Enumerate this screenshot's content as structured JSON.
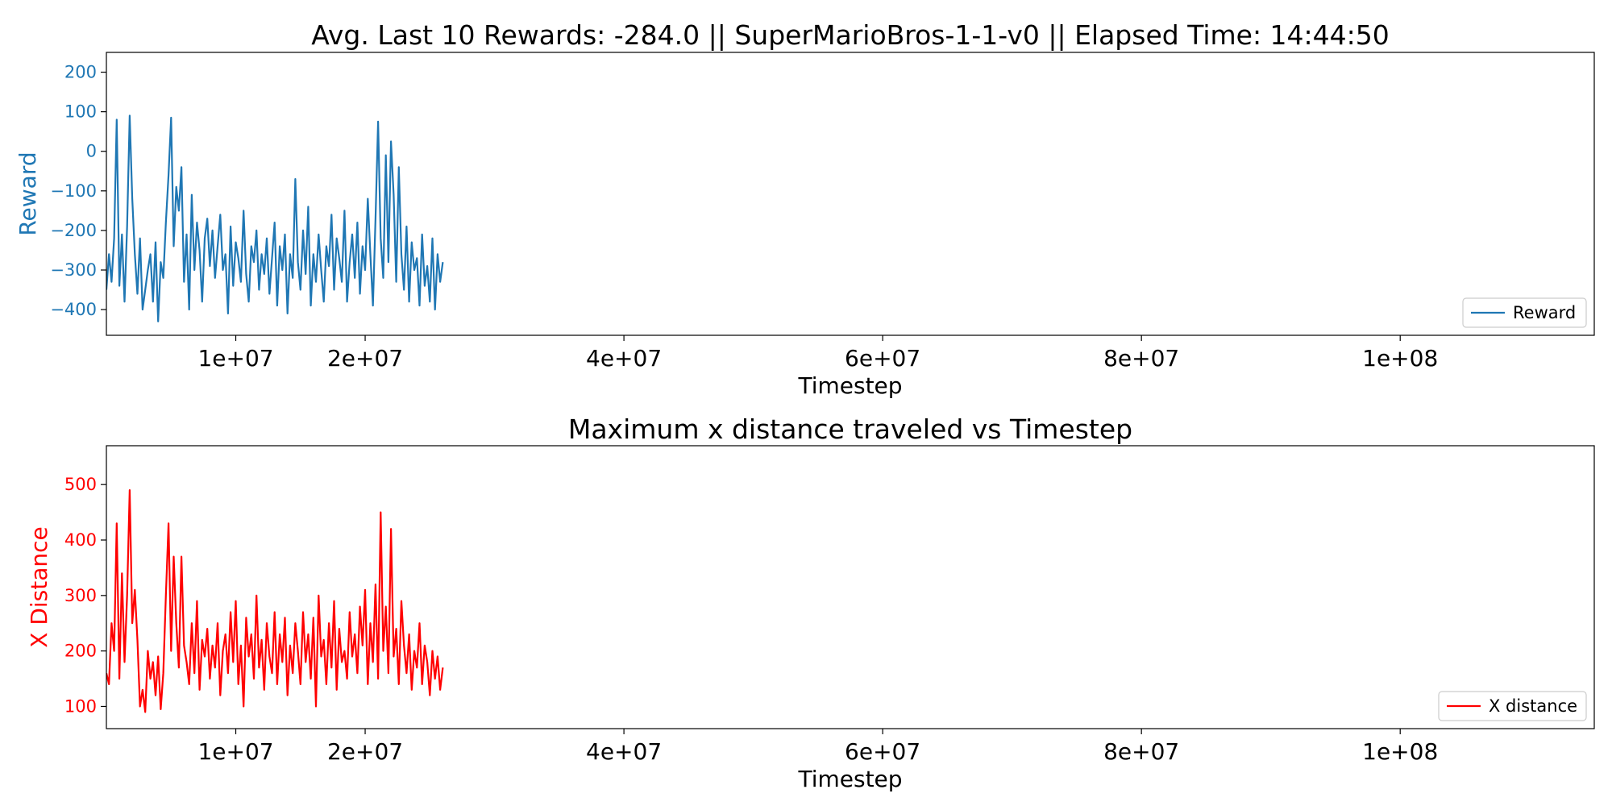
{
  "colors": {
    "reward": "#1f77b4",
    "xdist": "#ff0000",
    "axis": "#000000",
    "legend_border": "#cccccc"
  },
  "chart_data": [
    {
      "type": "line",
      "title": "Avg. Last 10 Rewards: -284.0 || SuperMarioBros-1-1-v0 || Elapsed Time: 14:44:50",
      "xlabel": "Timestep",
      "ylabel": "Reward",
      "xlim": [
        0,
        115000000
      ],
      "ylim": [
        -465,
        250
      ],
      "xticks": [
        10000000,
        20000000,
        40000000,
        60000000,
        80000000,
        100000000
      ],
      "xtick_labels": [
        "1e+07",
        "2e+07",
        "4e+07",
        "6e+07",
        "8e+07",
        "1e+08"
      ],
      "yticks": [
        -400,
        -300,
        -200,
        -100,
        0,
        100,
        200
      ],
      "ytick_labels": [
        "−400",
        "−300",
        "−200",
        "−100",
        "0",
        "100",
        "200"
      ],
      "legend": "lower-right",
      "series": [
        {
          "name": "Reward",
          "color": "#1f77b4",
          "x": [
            0,
            200000,
            400000,
            600000,
            800000,
            1000000,
            1200000,
            1400000,
            1600000,
            1800000,
            2000000,
            2200000,
            2400000,
            2600000,
            2800000,
            3000000,
            3200000,
            3400000,
            3600000,
            3800000,
            4000000,
            4200000,
            4400000,
            4600000,
            4800000,
            5000000,
            5200000,
            5400000,
            5600000,
            5800000,
            6000000,
            6200000,
            6400000,
            6600000,
            6800000,
            7000000,
            7200000,
            7400000,
            7600000,
            7800000,
            8000000,
            8200000,
            8400000,
            8600000,
            8800000,
            9000000,
            9200000,
            9400000,
            9600000,
            9800000,
            10000000,
            10200000,
            10400000,
            10600000,
            10800000,
            11000000,
            11200000,
            11400000,
            11600000,
            11800000,
            12000000,
            12200000,
            12400000,
            12600000,
            12800000,
            13000000,
            13200000,
            13400000,
            13600000,
            13800000,
            14000000,
            14200000,
            14400000,
            14600000,
            14800000,
            15000000,
            15200000,
            15400000,
            15600000,
            15800000,
            16000000,
            16200000,
            16400000,
            16600000,
            16800000,
            17000000,
            17200000,
            17400000,
            17600000,
            17800000,
            18000000,
            18200000,
            18400000,
            18600000,
            18800000,
            19000000,
            19200000,
            19400000,
            19600000,
            19800000,
            20000000,
            20200000,
            20400000,
            20600000,
            20800000,
            21000000,
            21200000,
            21400000,
            21600000,
            21800000,
            22000000,
            22200000,
            22400000,
            22600000,
            22800000,
            23000000,
            23200000,
            23400000,
            23600000,
            23800000,
            24000000,
            24200000,
            24400000,
            24600000,
            24800000,
            25000000,
            25200000,
            25400000,
            25600000,
            25800000,
            26000000
          ],
          "y": [
            -350,
            -260,
            -330,
            -220,
            80,
            -340,
            -210,
            -380,
            -190,
            90,
            -120,
            -260,
            -360,
            -220,
            -400,
            -350,
            -300,
            -260,
            -380,
            -230,
            -430,
            -280,
            -320,
            -180,
            -60,
            85,
            -240,
            -90,
            -150,
            -40,
            -330,
            -210,
            -400,
            -110,
            -300,
            -180,
            -250,
            -380,
            -220,
            -170,
            -290,
            -200,
            -320,
            -240,
            -160,
            -300,
            -260,
            -410,
            -190,
            -340,
            -230,
            -270,
            -330,
            -150,
            -310,
            -380,
            -240,
            -280,
            -200,
            -350,
            -260,
            -310,
            -220,
            -360,
            -270,
            -180,
            -390,
            -240,
            -300,
            -210,
            -410,
            -260,
            -320,
            -70,
            -280,
            -350,
            -200,
            -310,
            -140,
            -390,
            -260,
            -330,
            -210,
            -300,
            -380,
            -240,
            -290,
            -160,
            -350,
            -220,
            -270,
            -330,
            -150,
            -380,
            -280,
            -210,
            -320,
            -180,
            -360,
            -240,
            -300,
            -120,
            -260,
            -390,
            -170,
            75,
            -220,
            -320,
            -10,
            -280,
            25,
            -110,
            -330,
            -40,
            -260,
            -350,
            -190,
            -380,
            -230,
            -300,
            -270,
            -390,
            -210,
            -340,
            -290,
            -380,
            -220,
            -400,
            -260,
            -330,
            -280
          ]
        }
      ]
    },
    {
      "type": "line",
      "title": "Maximum x distance traveled vs Timestep",
      "xlabel": "Timestep",
      "ylabel": "X Distance",
      "xlim": [
        0,
        115000000
      ],
      "ylim": [
        60,
        570
      ],
      "xticks": [
        10000000,
        20000000,
        40000000,
        60000000,
        80000000,
        100000000
      ],
      "xtick_labels": [
        "1e+07",
        "2e+07",
        "4e+07",
        "6e+07",
        "8e+07",
        "1e+08"
      ],
      "yticks": [
        100,
        200,
        300,
        400,
        500
      ],
      "ytick_labels": [
        "100",
        "200",
        "300",
        "400",
        "500"
      ],
      "legend": "lower-right",
      "series": [
        {
          "name": "X distance",
          "color": "#ff0000",
          "x": [
            0,
            200000,
            400000,
            600000,
            800000,
            1000000,
            1200000,
            1400000,
            1600000,
            1800000,
            2000000,
            2200000,
            2400000,
            2600000,
            2800000,
            3000000,
            3200000,
            3400000,
            3600000,
            3800000,
            4000000,
            4200000,
            4400000,
            4600000,
            4800000,
            5000000,
            5200000,
            5400000,
            5600000,
            5800000,
            6000000,
            6200000,
            6400000,
            6600000,
            6800000,
            7000000,
            7200000,
            7400000,
            7600000,
            7800000,
            8000000,
            8200000,
            8400000,
            8600000,
            8800000,
            9000000,
            9200000,
            9400000,
            9600000,
            9800000,
            10000000,
            10200000,
            10400000,
            10600000,
            10800000,
            11000000,
            11200000,
            11400000,
            11600000,
            11800000,
            12000000,
            12200000,
            12400000,
            12600000,
            12800000,
            13000000,
            13200000,
            13400000,
            13600000,
            13800000,
            14000000,
            14200000,
            14400000,
            14600000,
            14800000,
            15000000,
            15200000,
            15400000,
            15600000,
            15800000,
            16000000,
            16200000,
            16400000,
            16600000,
            16800000,
            17000000,
            17200000,
            17400000,
            17600000,
            17800000,
            18000000,
            18200000,
            18400000,
            18600000,
            18800000,
            19000000,
            19200000,
            19400000,
            19600000,
            19800000,
            20000000,
            20200000,
            20400000,
            20600000,
            20800000,
            21000000,
            21200000,
            21400000,
            21600000,
            21800000,
            22000000,
            22200000,
            22400000,
            22600000,
            22800000,
            23000000,
            23200000,
            23400000,
            23600000,
            23800000,
            24000000,
            24200000,
            24400000,
            24600000,
            24800000,
            25000000,
            25200000,
            25400000,
            25600000,
            25800000,
            26000000
          ],
          "y": [
            160,
            140,
            250,
            200,
            430,
            150,
            340,
            180,
            300,
            490,
            250,
            310,
            220,
            100,
            130,
            90,
            200,
            150,
            180,
            120,
            190,
            95,
            160,
            300,
            430,
            200,
            370,
            250,
            170,
            370,
            210,
            180,
            140,
            250,
            160,
            290,
            130,
            220,
            190,
            240,
            150,
            210,
            170,
            250,
            120,
            200,
            230,
            160,
            270,
            180,
            290,
            140,
            210,
            100,
            260,
            190,
            230,
            150,
            300,
            170,
            220,
            130,
            250,
            190,
            160,
            270,
            140,
            230,
            180,
            260,
            120,
            210,
            160,
            250,
            200,
            140,
            270,
            180,
            230,
            150,
            260,
            100,
            300,
            190,
            220,
            140,
            250,
            170,
            290,
            130,
            240,
            180,
            200,
            150,
            270,
            190,
            230,
            160,
            280,
            210,
            310,
            140,
            250,
            180,
            320,
            150,
            450,
            200,
            280,
            160,
            420,
            190,
            240,
            140,
            290,
            210,
            160,
            230,
            130,
            200,
            170,
            250,
            140,
            210,
            180,
            120,
            200,
            150,
            190,
            130,
            170
          ]
        }
      ]
    }
  ]
}
